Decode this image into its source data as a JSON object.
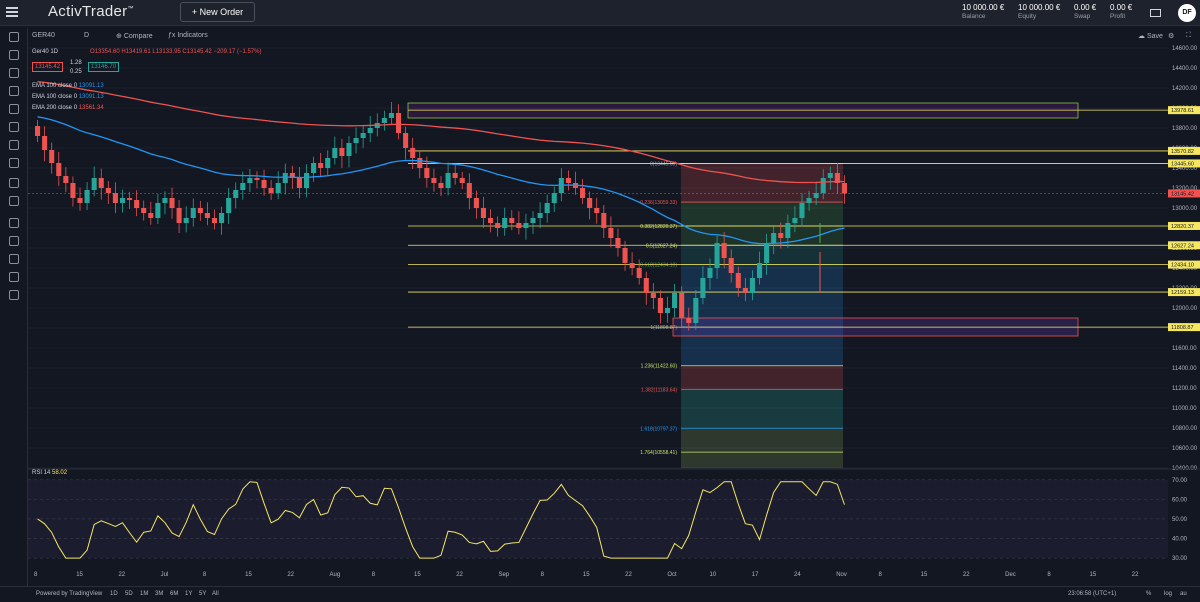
{
  "header": {
    "app_name": "ActivTrader",
    "new_order": "+ New Order",
    "balance_value": "10 000.00 €",
    "balance_label": "Balance",
    "equity_value": "10 000.00 €",
    "equity_label": "Equity",
    "swap_value": "0.00 €",
    "swap_label": "Swap",
    "profit_value": "0.00 €",
    "profit_label": "Profit",
    "avatar_initials": "DF"
  },
  "toolbar": {
    "symbol": "GER40",
    "interval": "D",
    "compare": "Compare",
    "indicators": "Indicators",
    "save": "Save"
  },
  "legend": {
    "title": "Ger40 1D",
    "ohlc": "O13354.60 H13419.61 L13133.95 C13145.42 −209.17 (−1.57%)",
    "sell_price": "13145.42",
    "spread_top": "1.28",
    "spread_bottom": "0.25",
    "buy_price": "13146.70",
    "ema1": "EMA 100 close 0",
    "ema1_val": "13091.13",
    "ema2": "EMA 100 close 0",
    "ema2_val": "13091.13",
    "ema3": "EMA 200 close 0",
    "ema3_val": "13561.34"
  },
  "price_axis": [
    "14600.00",
    "14400.00",
    "14200.00",
    "14000.00",
    "13800.00",
    "13600.00",
    "13400.00",
    "13200.00",
    "13000.00",
    "12800.00",
    "12600.00",
    "12400.00",
    "12200.00",
    "12000.00",
    "11800.00",
    "11600.00",
    "11400.00",
    "11200.00",
    "11000.00",
    "10800.00",
    "10600.00",
    "10400.00"
  ],
  "price_labels": [
    {
      "v": "13978.61",
      "price": 13978.61,
      "c": "#f5e663"
    },
    {
      "v": "13570.82",
      "price": 13570.82,
      "c": "#f5e663"
    },
    {
      "v": "13445.60",
      "price": 13445.6,
      "c": "#f5e663"
    },
    {
      "v": "13145.42",
      "price": 13145.42,
      "c": "#ef5350"
    },
    {
      "v": "12820.37",
      "price": 12820.37,
      "c": "#f5e663"
    },
    {
      "v": "12627.24",
      "price": 12627.24,
      "c": "#f5e663"
    },
    {
      "v": "12434.10",
      "price": 12434.1,
      "c": "#f5e663"
    },
    {
      "v": "12159.13",
      "price": 12159.13,
      "c": "#f5e663"
    },
    {
      "v": "11808.87",
      "price": 11808.87,
      "c": "#f5e663"
    }
  ],
  "fib_labels": [
    {
      "t": "0(13445.60)",
      "price": 13445.6,
      "c": "#9aa0aa"
    },
    {
      "t": "0.236(13059.33)",
      "price": 13059.33,
      "c": "#ef5350"
    },
    {
      "t": "0.382(12820.37)",
      "price": 12820.37,
      "c": "#c8e66b"
    },
    {
      "t": "0.5(12627.24)",
      "price": 12627.24,
      "c": "#c8e66b"
    },
    {
      "t": "0.618(12434.10)",
      "price": 12434.1,
      "c": "#4caf50"
    },
    {
      "t": "1(11808.87)",
      "price": 11808.87,
      "c": "#9aa0aa"
    },
    {
      "t": "1.236(11422.60)",
      "price": 11422.6,
      "c": "#c8e66b"
    },
    {
      "t": "1.382(11183.64)",
      "price": 11183.64,
      "c": "#ef5350"
    },
    {
      "t": "1.618(10797.37)",
      "price": 10797.37,
      "c": "#2196f3"
    },
    {
      "t": "1.764(10558.41)",
      "price": 10558.41,
      "c": "#c8e66b"
    }
  ],
  "date_axis": [
    "8",
    "15",
    "22",
    "Jul",
    "8",
    "15",
    "22",
    "Aug",
    "8",
    "15",
    "22",
    "Sep",
    "8",
    "15",
    "22",
    "Oct",
    "10",
    "17",
    "24",
    "Nov",
    "8",
    "15",
    "22",
    "Dec",
    "8",
    "15",
    "22"
  ],
  "rsi": {
    "label": "RSI 14",
    "value": "58.02",
    "axis": [
      "70.00",
      "60.00",
      "50.00",
      "40.00",
      "30.00"
    ]
  },
  "footer": {
    "powered": "Powered by TradingView",
    "ranges": [
      "1D",
      "5D",
      "1M",
      "3M",
      "6M",
      "1Y",
      "5Y",
      "All"
    ],
    "time": "23:06:58 (UTC+1)",
    "pct": "%",
    "log": "log",
    "auto": "au"
  },
  "chart_data": {
    "type": "candlestick",
    "symbol": "GER40",
    "ylim": [
      10400,
      14600
    ],
    "closes": [
      13720,
      13580,
      13450,
      13320,
      13250,
      13100,
      13050,
      13180,
      13300,
      13200,
      13150,
      13050,
      13100,
      13080,
      13000,
      12950,
      12900,
      13050,
      13100,
      13000,
      12850,
      12900,
      13000,
      12950,
      12900,
      12850,
      12950,
      13100,
      13180,
      13250,
      13300,
      13280,
      13200,
      13150,
      13250,
      13350,
      13300,
      13200,
      13350,
      13450,
      13400,
      13500,
      13600,
      13520,
      13650,
      13700,
      13750,
      13800,
      13850,
      13900,
      13950,
      13750,
      13600,
      13500,
      13400,
      13300,
      13250,
      13200,
      13350,
      13300,
      13250,
      13100,
      13000,
      12900,
      12850,
      12800,
      12900,
      12850,
      12800,
      12850,
      12900,
      12950,
      13050,
      13150,
      13300,
      13250,
      13200,
      13100,
      13000,
      12950,
      12800,
      12700,
      12600,
      12450,
      12400,
      12300,
      12150,
      12100,
      11950,
      12000,
      12150,
      11900,
      11850,
      12100,
      12300,
      12400,
      12650,
      12500,
      12350,
      12200,
      12150,
      12300,
      12450,
      12650,
      12750,
      12700,
      12850,
      12900,
      13050,
      13100,
      13150,
      13300,
      13350,
      13250,
      13145
    ]
  }
}
